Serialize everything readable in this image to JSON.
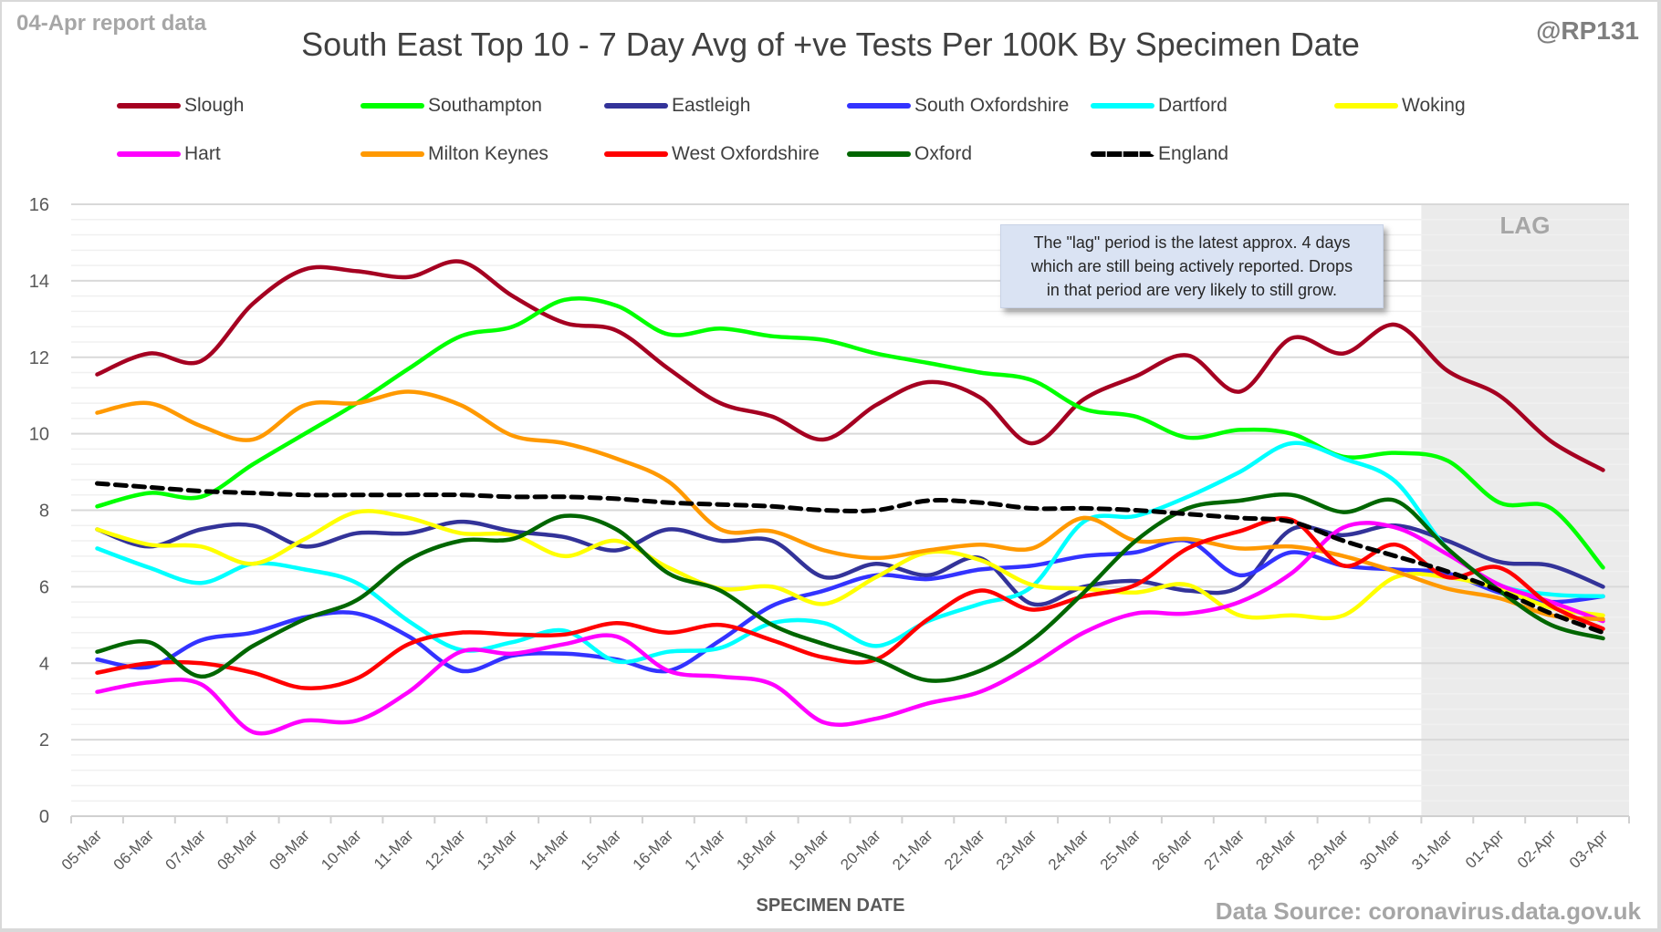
{
  "header": {
    "report_label": "04-Apr report data",
    "title": "South East Top 10 - 7 Day Avg of +ve Tests Per 100K By Specimen Date",
    "handle": "@RP131"
  },
  "footer": {
    "source": "Data Source: coronavirus.data.gov.uk"
  },
  "annotation": {
    "note_lines": [
      "The \"lag\" period is the latest approx. 4 days",
      "which are still being actively reported.  Drops",
      "in that period are very likely to still grow."
    ],
    "lag_label": "LAG",
    "lag_start_category": "31-Mar",
    "lag_color": "#ebebeb"
  },
  "chart_data": {
    "type": "line",
    "title": "South East Top 10 - 7 Day Avg of +ve Tests Per 100K By Specimen Date",
    "xlabel": "SPECIMEN DATE",
    "ylabel": "",
    "ylim": [
      0,
      16
    ],
    "yticks": [
      0,
      2,
      4,
      6,
      8,
      10,
      12,
      14,
      16
    ],
    "grid": true,
    "legend_position": "top",
    "categories": [
      "05-Mar",
      "06-Mar",
      "07-Mar",
      "08-Mar",
      "09-Mar",
      "10-Mar",
      "11-Mar",
      "12-Mar",
      "13-Mar",
      "14-Mar",
      "15-Mar",
      "16-Mar",
      "17-Mar",
      "18-Mar",
      "19-Mar",
      "20-Mar",
      "21-Mar",
      "22-Mar",
      "23-Mar",
      "24-Mar",
      "25-Mar",
      "26-Mar",
      "27-Mar",
      "28-Mar",
      "29-Mar",
      "30-Mar",
      "31-Mar",
      "01-Apr",
      "02-Apr",
      "03-Apr"
    ],
    "series": [
      {
        "name": "Slough",
        "color": "#a50021",
        "dashed": false,
        "values": [
          11.55,
          12.1,
          11.9,
          13.4,
          14.3,
          14.25,
          14.1,
          14.5,
          13.6,
          12.9,
          12.7,
          11.7,
          10.8,
          10.45,
          9.85,
          10.75,
          11.35,
          10.95,
          9.75,
          10.9,
          11.5,
          12.05,
          11.1,
          12.5,
          12.1,
          12.85,
          11.65,
          11.0,
          9.8,
          9.05
        ]
      },
      {
        "name": "Southampton",
        "color": "#00ff00",
        "dashed": false,
        "values": [
          8.1,
          8.45,
          8.35,
          9.2,
          10.0,
          10.8,
          11.7,
          12.55,
          12.8,
          13.5,
          13.35,
          12.6,
          12.75,
          12.55,
          12.45,
          12.1,
          11.85,
          11.6,
          11.4,
          10.65,
          10.45,
          9.9,
          10.1,
          10.0,
          9.4,
          9.5,
          9.3,
          8.2,
          8.05,
          6.5
        ]
      },
      {
        "name": "Eastleigh",
        "color": "#333399",
        "dashed": false,
        "values": [
          7.5,
          7.05,
          7.5,
          7.6,
          7.05,
          7.4,
          7.4,
          7.7,
          7.45,
          7.3,
          6.95,
          7.5,
          7.2,
          7.2,
          6.25,
          6.6,
          6.3,
          6.75,
          5.55,
          6.0,
          6.15,
          5.9,
          6.0,
          7.5,
          7.35,
          7.6,
          7.2,
          6.65,
          6.55,
          6.0
        ]
      },
      {
        "name": "South Oxfordshire",
        "color": "#3333ff",
        "dashed": false,
        "values": [
          4.1,
          3.9,
          4.6,
          4.8,
          5.2,
          5.3,
          4.7,
          3.8,
          4.2,
          4.25,
          4.1,
          3.8,
          4.6,
          5.5,
          5.9,
          6.3,
          6.2,
          6.45,
          6.55,
          6.8,
          6.9,
          7.2,
          6.3,
          6.9,
          6.55,
          6.45,
          6.35,
          5.85,
          5.6,
          5.75
        ]
      },
      {
        "name": "Dartford",
        "color": "#00ffff",
        "dashed": false,
        "values": [
          7.0,
          6.5,
          6.1,
          6.6,
          6.45,
          6.1,
          5.1,
          4.35,
          4.55,
          4.85,
          4.05,
          4.3,
          4.4,
          5.05,
          5.05,
          4.45,
          5.1,
          5.55,
          6.0,
          7.7,
          7.85,
          8.35,
          9.0,
          9.75,
          9.35,
          8.75,
          7.0,
          6.05,
          5.8,
          5.75
        ]
      },
      {
        "name": "Woking",
        "color": "#ffff00",
        "dashed": false,
        "values": [
          7.5,
          7.1,
          7.05,
          6.6,
          7.25,
          7.95,
          7.8,
          7.4,
          7.35,
          6.8,
          7.2,
          6.5,
          5.95,
          6.0,
          5.55,
          6.25,
          6.9,
          6.7,
          6.05,
          5.95,
          5.85,
          6.05,
          5.25,
          5.25,
          5.25,
          6.25,
          6.25,
          5.95,
          5.45,
          5.25
        ]
      },
      {
        "name": "Hart",
        "color": "#ff00ff",
        "dashed": false,
        "values": [
          3.25,
          3.5,
          3.45,
          2.2,
          2.5,
          2.5,
          3.25,
          4.3,
          4.25,
          4.5,
          4.7,
          3.8,
          3.65,
          3.45,
          2.45,
          2.55,
          2.95,
          3.25,
          3.95,
          4.8,
          5.3,
          5.3,
          5.6,
          6.35,
          7.55,
          7.55,
          6.85,
          6.05,
          5.6,
          5.1
        ]
      },
      {
        "name": "Milton Keynes",
        "color": "#ff9900",
        "dashed": false,
        "values": [
          10.55,
          10.8,
          10.2,
          9.85,
          10.75,
          10.8,
          11.1,
          10.75,
          9.95,
          9.75,
          9.35,
          8.75,
          7.5,
          7.45,
          6.95,
          6.75,
          6.95,
          7.1,
          7.0,
          7.8,
          7.2,
          7.25,
          7.0,
          7.05,
          6.8,
          6.4,
          5.95,
          5.7,
          5.25,
          5.15
        ]
      },
      {
        "name": "West Oxfordshire",
        "color": "#ff0000",
        "dashed": false,
        "values": [
          3.75,
          4.0,
          4.0,
          3.75,
          3.35,
          3.6,
          4.5,
          4.8,
          4.75,
          4.75,
          5.05,
          4.8,
          5.0,
          4.6,
          4.15,
          4.1,
          5.15,
          5.9,
          5.4,
          5.75,
          6.05,
          7.0,
          7.45,
          7.75,
          6.55,
          7.1,
          6.25,
          6.5,
          5.5,
          4.9
        ]
      },
      {
        "name": "Oxford",
        "color": "#006600",
        "dashed": false,
        "values": [
          4.3,
          4.55,
          3.65,
          4.45,
          5.15,
          5.65,
          6.7,
          7.2,
          7.25,
          7.85,
          7.5,
          6.35,
          5.9,
          5.0,
          4.5,
          4.1,
          3.55,
          3.8,
          4.6,
          5.85,
          7.2,
          8.05,
          8.25,
          8.4,
          7.95,
          8.25,
          7.0,
          5.9,
          5.0,
          4.65
        ]
      },
      {
        "name": "England",
        "color": "#000000",
        "dashed": true,
        "values": [
          8.7,
          8.6,
          8.5,
          8.45,
          8.4,
          8.4,
          8.4,
          8.4,
          8.35,
          8.35,
          8.3,
          8.2,
          8.15,
          8.1,
          8.0,
          8.0,
          8.25,
          8.2,
          8.05,
          8.05,
          8.0,
          7.9,
          7.8,
          7.7,
          7.2,
          6.8,
          6.4,
          5.9,
          5.3,
          4.8
        ]
      }
    ]
  }
}
